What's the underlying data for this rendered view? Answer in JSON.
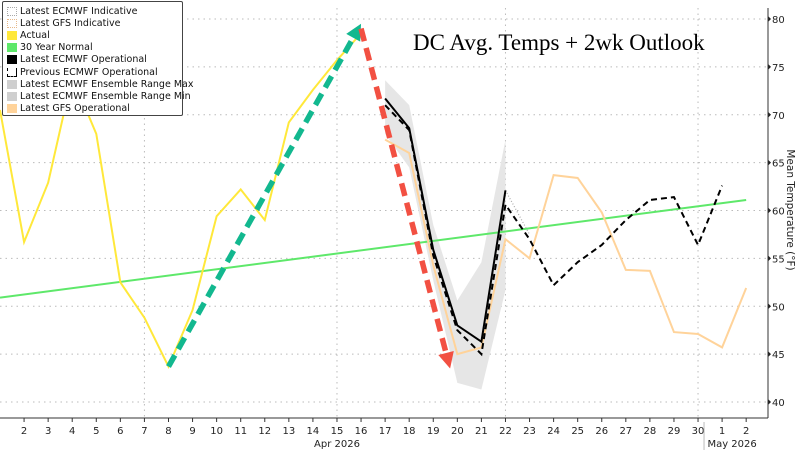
{
  "chart_data": {
    "type": "line",
    "title": "DC Avg. Temps + 2wk Outlook",
    "ylabel": "Mean Temperature (°F)",
    "xlabel": "",
    "ylim": [
      40,
      80
    ],
    "yticks": [
      40,
      45,
      50,
      55,
      60,
      65,
      70,
      75,
      80
    ],
    "xlim": [
      "2026-04-01",
      "2026-05-02"
    ],
    "x_tick_labels": [
      "2",
      "3",
      "4",
      "5",
      "6",
      "7",
      "8",
      "9",
      "10",
      "11",
      "12",
      "13",
      "14",
      "15",
      "16",
      "17",
      "18",
      "19",
      "20",
      "21",
      "22",
      "23",
      "24",
      "25",
      "26",
      "27",
      "28",
      "29",
      "30",
      "1",
      "2"
    ],
    "x_group_labels": [
      {
        "label": "Apr 2026",
        "at": "2026-04-15"
      },
      {
        "label": "May 2026",
        "at": "2026-05-01"
      }
    ],
    "grid": true,
    "legend_placement": "top-left",
    "legend": [
      "Latest ECMWF Indicative",
      "Latest GFS Indicative",
      "Actual",
      "30 Year Normal",
      "Latest ECMWF Operational",
      "Previous ECMWF Operational",
      "Latest ECMWF Ensemble Range Max",
      "Latest ECMWF Ensemble Range Min",
      "Latest GFS Operational"
    ],
    "series": [
      {
        "name": "Actual",
        "color": "#ffe83a",
        "start": "2026-04-01",
        "values": [
          70.5,
          56.7,
          62.9,
          74,
          68,
          52.5,
          48.8,
          43.7,
          49.6,
          59.4,
          62.2,
          59,
          69.2,
          72.6,
          75.7,
          78.5
        ]
      },
      {
        "name": "30 Year Normal",
        "color": "#5ee86a",
        "start": "2026-04-01",
        "end": "2026-05-02",
        "values_endpoints": [
          50.9,
          61.1
        ]
      },
      {
        "name": "Latest ECMWF Ensemble Range Max",
        "color": "#e6e6e6",
        "start": "2026-04-17",
        "values": [
          73.6,
          71,
          58.5,
          50.6,
          54.6,
          67.4
        ]
      },
      {
        "name": "Latest ECMWF Ensemble Range Min",
        "color": "#e6e6e6",
        "start": "2026-04-17",
        "values": [
          68,
          64.5,
          52.7,
          42,
          41.3,
          51.7
        ]
      },
      {
        "name": "Latest GFS Operational",
        "color": "#ffd39a",
        "start": "2026-04-17",
        "values": [
          67.4,
          66,
          54.3,
          45,
          45.7,
          57,
          55,
          63.7,
          63.4,
          59.8,
          53.8,
          53.7,
          47.3,
          47.1,
          45.7,
          51.9
        ]
      },
      {
        "name": "Latest ECMWF Operational",
        "color": "#000000",
        "start": "2026-04-17",
        "values": [
          71.7,
          68.6,
          55.9,
          48,
          46.3,
          62.1
        ]
      },
      {
        "name": "Previous ECMWF Operational",
        "color": "#000000",
        "dashed": true,
        "start": "2026-04-17",
        "values": [
          71,
          68.4,
          55.3,
          47.5,
          45,
          60.6,
          57,
          52.2,
          54.6,
          56.4,
          59,
          61.1,
          61.4,
          56.4,
          62.6
        ]
      },
      {
        "name": "Latest ECMWF Indicative",
        "color": "#aaaaaa",
        "dotted": true,
        "start": "2026-04-22",
        "values": [
          62.1,
          57.5
        ]
      }
    ],
    "annotations": [
      {
        "type": "arrow",
        "color": "#12b88f",
        "from": [
          "2026-04-08",
          43.7
        ],
        "to": [
          "2026-04-16",
          79.5
        ]
      },
      {
        "type": "arrow",
        "color": "#f25042",
        "from": [
          "2026-04-16",
          79
        ],
        "to": [
          "2026-04-19.7",
          43.5
        ]
      }
    ]
  }
}
